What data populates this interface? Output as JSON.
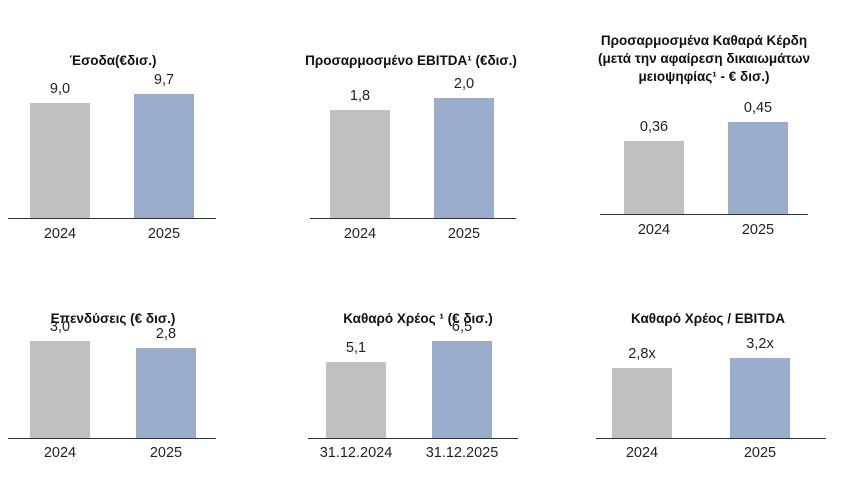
{
  "chart_data": [
    {
      "type": "bar",
      "title_lines": [
        "Έσοδα(€δισ.)"
      ],
      "categories": [
        "2024",
        "2025"
      ],
      "values": [
        9.0,
        9.7
      ],
      "value_labels": [
        "9,0",
        "9,7"
      ],
      "ylim": [
        0,
        10.8
      ]
    },
    {
      "type": "bar",
      "title_lines": [
        "Προσαρμοσμένο  EBITDA¹ (€δισ.)"
      ],
      "categories": [
        "2024",
        "2025"
      ],
      "values": [
        1.8,
        2.0
      ],
      "value_labels": [
        "1,8",
        "2,0"
      ],
      "ylim": [
        0,
        2.3
      ]
    },
    {
      "type": "bar",
      "title_lines": [
        "Προσαρμοσμένα Καθαρά Κέρδη",
        "(μετά την αφαίρεση δικαιωμάτων",
        "μειοψηφίας¹  - € δισ.)"
      ],
      "categories": [
        "2024",
        "2025"
      ],
      "values": [
        0.36,
        0.45
      ],
      "value_labels": [
        "0,36",
        "0,45"
      ],
      "ylim": [
        0,
        0.51
      ]
    },
    {
      "type": "bar",
      "title_lines": [
        "Επενδύσεις (€ δισ.)"
      ],
      "categories": [
        "2024",
        "2025"
      ],
      "values": [
        3.0,
        2.8
      ],
      "value_labels": [
        "3,0",
        "2,8"
      ],
      "ylim": [
        0,
        3.1
      ]
    },
    {
      "type": "bar",
      "title_lines": [
        "Καθαρό Χρέος ¹ (€ δισ.)"
      ],
      "categories": [
        "31.12.2024",
        "31.12.2025"
      ],
      "values": [
        5.1,
        6.5
      ],
      "value_labels": [
        "5,1",
        "6,5"
      ],
      "ylim": [
        0,
        6.7
      ]
    },
    {
      "type": "bar",
      "title_lines": [
        "Καθαρό Χρέος / EBITDA"
      ],
      "categories": [
        "2024",
        "2025"
      ],
      "values": [
        2.8,
        3.2
      ],
      "value_labels": [
        "2,8x",
        "3,2x"
      ],
      "ylim": [
        0,
        4.0
      ]
    }
  ],
  "colors": {
    "bar_2024": "#c0c0c0",
    "bar_2025": "#9badcc",
    "axis": "#333333"
  }
}
